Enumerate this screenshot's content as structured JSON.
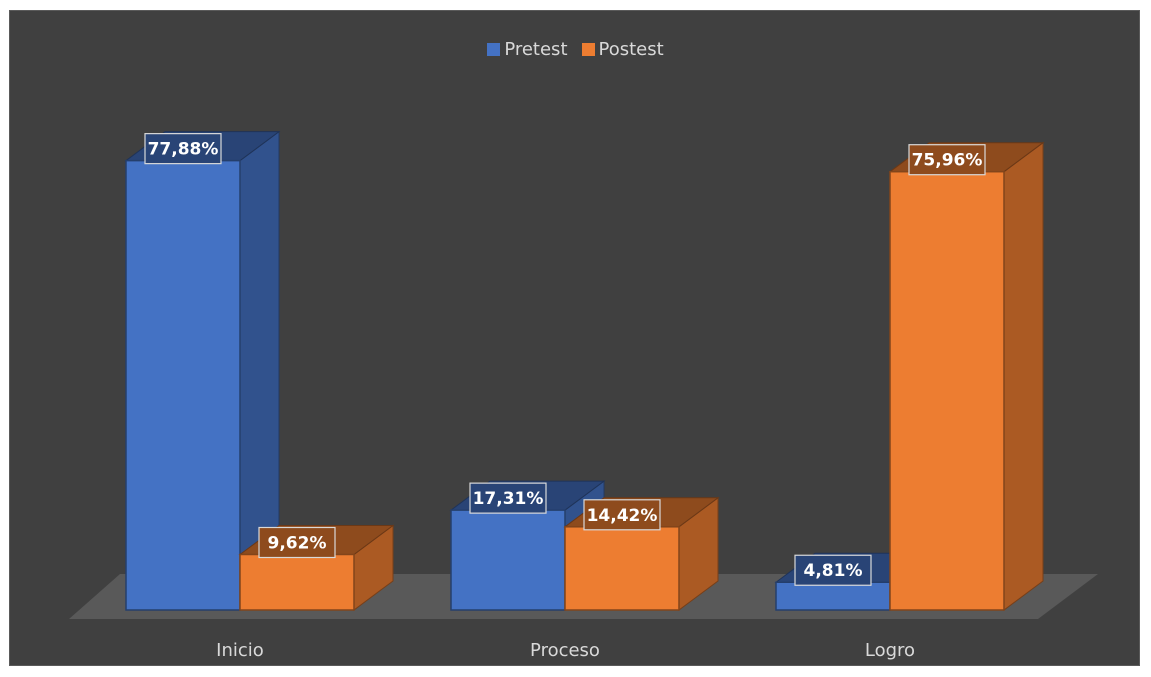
{
  "chart_data": {
    "type": "bar",
    "style": "3d-clustered-column",
    "categories": [
      "Inicio",
      "Proceso",
      "Logro"
    ],
    "series": [
      {
        "name": "Pretest",
        "values": [
          77.88,
          17.31,
          4.81
        ],
        "labels": [
          "77,88%",
          "17,31%",
          "4,81%"
        ],
        "color": "#4472C4"
      },
      {
        "name": "Postest",
        "values": [
          9.62,
          14.42,
          75.96
        ],
        "labels": [
          "9,62%",
          "14,42%",
          "75,96%"
        ],
        "color": "#ED7D31"
      }
    ],
    "ylim": [
      0,
      100
    ],
    "grid": false,
    "legend": "top-center",
    "background": "#404040"
  }
}
